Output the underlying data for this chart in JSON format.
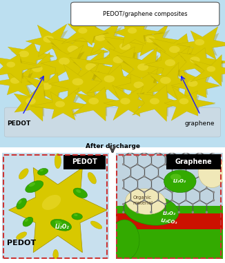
{
  "title_top": "PEDOT/graphene composites",
  "label_pedot": "PEDOT",
  "label_graphene": "graphene",
  "label_after_discharge": "After discharge",
  "label_pedot_box": "PEDOT",
  "label_graphene_box": "Graphene",
  "label_li2o2_left": "Li₂O₂",
  "label_pedot_main": "PEDOT",
  "label_organic": "Organic\nmaterial",
  "label_li2o2_right": "Li₂O₂",
  "label_li2co3": "Li₂CO₃",
  "bg_top": "#bcdff0",
  "bg_bottom_left": "#c8e0ee",
  "bg_bottom_right": "#b8cedd",
  "color_yellow_light": "#f0e040",
  "color_yellow_mid": "#d8c800",
  "color_yellow_dark": "#b8a800",
  "color_green_dark": "#228800",
  "color_green_mid": "#33aa00",
  "color_green_light": "#66cc22",
  "color_red": "#cc1100",
  "color_cream": "#f0e8b8",
  "color_grey_graphene": "#8a8a8a",
  "color_grey_graphene_bond": "#555555",
  "arrow_color": "#1a1aff",
  "border_color": "#cc3333",
  "fig_width": 3.26,
  "fig_height": 3.82,
  "dpi": 100
}
